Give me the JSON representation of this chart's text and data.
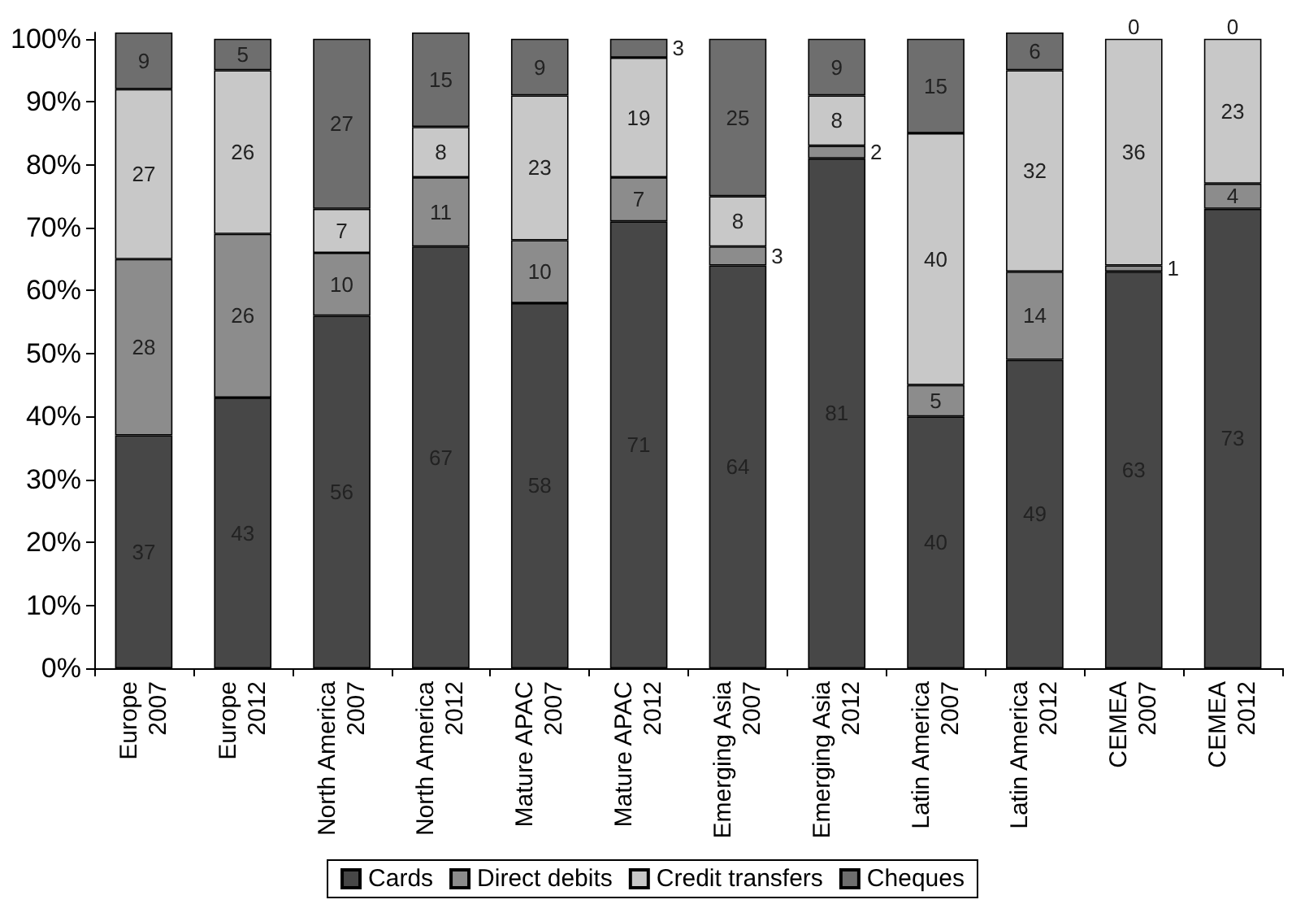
{
  "chart_data": {
    "type": "bar",
    "stacked": true,
    "data_labels": true,
    "legend": "bottom",
    "grid": false,
    "categories": [
      "Europe\n2007",
      "Europe\n2012",
      "North America\n2007",
      "North America\n2012",
      "Mature APAC\n2007",
      "Mature APAC\n2012",
      "Emerging Asia\n2007",
      "Emerging Asia\n2012",
      "Latin America\n2007",
      "Latin America\n2012",
      "CEMEA\n2007",
      "CEMEA\n2012"
    ],
    "ylim": [
      0,
      101
    ],
    "yticks": [
      {
        "value": 0,
        "label": "0%"
      },
      {
        "value": 10,
        "label": "10%"
      },
      {
        "value": 20,
        "label": "20%"
      },
      {
        "value": 30,
        "label": "30%"
      },
      {
        "value": 40,
        "label": "40%"
      },
      {
        "value": 50,
        "label": "50%"
      },
      {
        "value": 60,
        "label": "60%"
      },
      {
        "value": 70,
        "label": "70%"
      },
      {
        "value": 80,
        "label": "80%"
      },
      {
        "value": 90,
        "label": "90%"
      },
      {
        "value": 100,
        "label": "100%"
      }
    ],
    "series": [
      {
        "name": "Cards",
        "color": "#474747",
        "values": [
          37,
          43,
          56,
          67,
          58,
          71,
          64,
          81,
          40,
          49,
          63,
          73
        ]
      },
      {
        "name": "Direct debits",
        "color": "#8c8c8c",
        "values": [
          28,
          26,
          10,
          11,
          10,
          7,
          3,
          2,
          5,
          14,
          1,
          4
        ]
      },
      {
        "name": "Credit transfers",
        "color": "#c8c8c8",
        "values": [
          27,
          26,
          7,
          8,
          23,
          19,
          8,
          8,
          40,
          32,
          36,
          23
        ]
      },
      {
        "name": "Cheques",
        "color": "#6e6e6e",
        "values": [
          9,
          5,
          27,
          15,
          9,
          3,
          25,
          9,
          15,
          6,
          0,
          0
        ]
      }
    ]
  }
}
